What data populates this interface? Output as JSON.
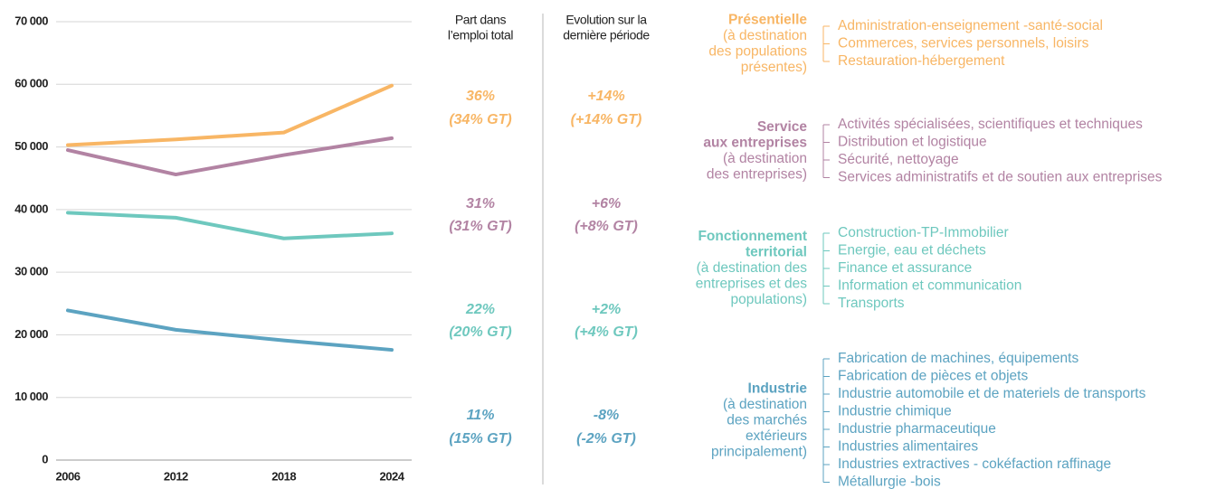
{
  "chart_data": {
    "type": "line",
    "x": [
      2006,
      2012,
      2018,
      2024
    ],
    "xlim": [
      2006,
      2024
    ],
    "xticks": [
      2006,
      2012,
      2018,
      2024
    ],
    "ylim": [
      0,
      70000
    ],
    "yticks": [
      {
        "value": 0,
        "label": "0"
      },
      {
        "value": 10000,
        "label": "10 000"
      },
      {
        "value": 20000,
        "label": "20 000"
      },
      {
        "value": 30000,
        "label": "30 000"
      },
      {
        "value": 40000,
        "label": "40 000"
      },
      {
        "value": 50000,
        "label": "50 000"
      },
      {
        "value": 60000,
        "label": "60 000"
      },
      {
        "value": 70000,
        "label": "70 000"
      }
    ],
    "grid": true,
    "series": [
      {
        "color": "#f8b665",
        "values": [
          50300,
          51200,
          52300,
          59800
        ]
      },
      {
        "color": "#b283a3",
        "values": [
          49500,
          45600,
          48700,
          51400
        ]
      },
      {
        "color": "#6ec8be",
        "values": [
          39500,
          38700,
          35400,
          36200
        ]
      },
      {
        "color": "#5ca3c1",
        "values": [
          23900,
          20800,
          19100,
          17600
        ]
      }
    ]
  },
  "headers": {
    "share": [
      "Part dans",
      "l’emploi total"
    ],
    "evolution": [
      "Evolution sur la",
      "dernière période"
    ]
  },
  "groups": [
    {
      "name": [
        "Présentielle"
      ],
      "detail": [
        "(à destination",
        "des populations",
        "présentes)"
      ],
      "share": "36%",
      "share_gt": "(34% GT)",
      "evolution": "+14%",
      "evolution_gt": "(+14% GT)",
      "sectors": [
        "Administration-enseignement -santé-social",
        "Commerces, services personnels, loisirs",
        "Restauration-hébergement"
      ]
    },
    {
      "name": [
        "Service",
        "aux entreprises"
      ],
      "detail": [
        "(à destination",
        "des entreprises)"
      ],
      "share": "31%",
      "share_gt": "(31% GT)",
      "evolution": "+6%",
      "evolution_gt": "(+8% GT)",
      "sectors": [
        "Activités spécialisées, scientifiques et techniques",
        "Distribution et logistique",
        "Sécurité, nettoyage",
        "Services administratifs et de soutien aux entreprises"
      ]
    },
    {
      "name": [
        "Fonctionnement",
        "territorial"
      ],
      "detail": [
        "(à destination des",
        "entreprises et des",
        "populations)"
      ],
      "share": "22%",
      "share_gt": "(20% GT)",
      "evolution": "+2%",
      "evolution_gt": "(+4% GT)",
      "sectors": [
        "Construction-TP-Immobilier",
        "Energie, eau et déchets",
        "Finance et assurance",
        "Information et communication",
        "Transports"
      ]
    },
    {
      "name": [
        "Industrie"
      ],
      "detail": [
        "(à destination",
        "des marchés",
        "extérieurs",
        "principalement)"
      ],
      "share": "11%",
      "share_gt": "(15% GT)",
      "evolution": "-8%",
      "evolution_gt": "(-2% GT)",
      "sectors": [
        "Fabrication de machines, équipements",
        "Fabrication de pièces et objets",
        "Industrie automobile et de materiels de transports",
        "Industrie chimique",
        "Industrie pharmaceutique",
        "Industries alimentaires",
        "Industries extractives - cokéfaction raffinage",
        "Métallurgie -bois"
      ]
    }
  ]
}
